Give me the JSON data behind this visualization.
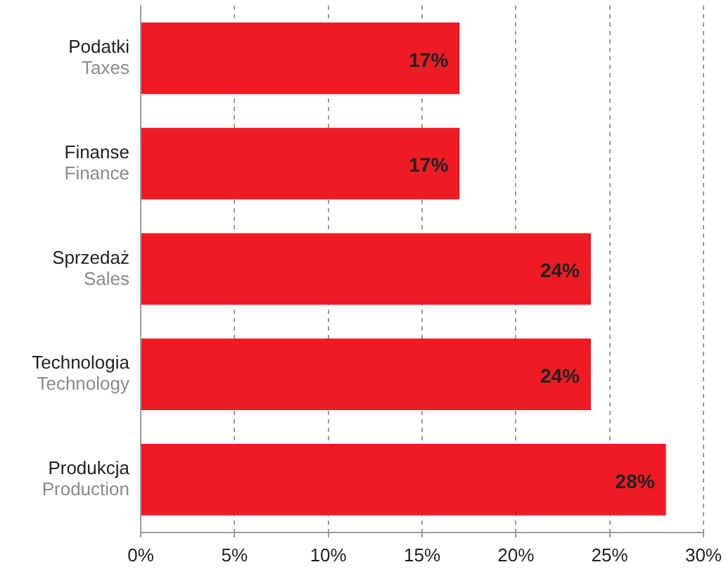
{
  "chart_data": {
    "type": "bar",
    "orientation": "horizontal",
    "categories": [
      "Podatki\nTaxes",
      "Finanse\nFinance",
      "Sprzedaż\nSales",
      "Technologia\nTechnology",
      "Produkcja\nProduction"
    ],
    "values": [
      17,
      17,
      24,
      24,
      28
    ],
    "color": "#ed1c24",
    "xlim": [
      0,
      30
    ],
    "xticks": [
      {
        "value": 0,
        "label": "0%"
      },
      {
        "value": 5,
        "label": "5%"
      },
      {
        "value": 10,
        "label": "10%"
      },
      {
        "value": 15,
        "label": "15%"
      },
      {
        "value": 20,
        "label": "20%"
      },
      {
        "value": 25,
        "label": "25%"
      },
      {
        "value": 30,
        "label": "30%"
      }
    ],
    "value_labels": [
      "17%",
      "17%",
      "24%",
      "24%",
      "28%"
    ],
    "grid": "x"
  }
}
